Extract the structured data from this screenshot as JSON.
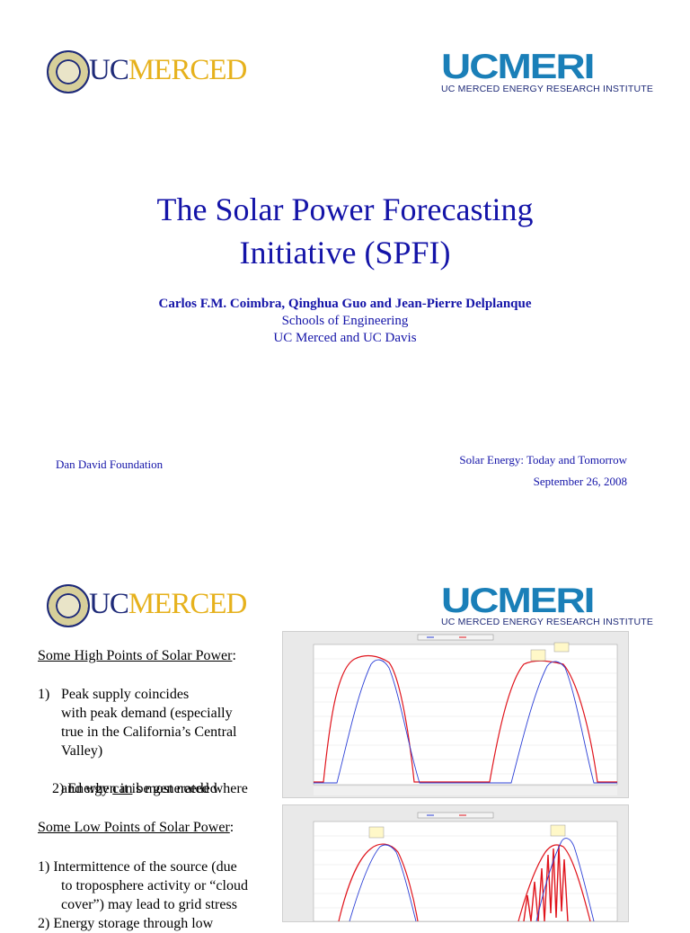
{
  "slide1": {
    "logo_left": {
      "uc": "UC",
      "merced": "MERCED"
    },
    "logo_right": {
      "name": "UCMERI",
      "subtitle": "UC MERCED ENERGY RESEARCH INSTITUTE"
    },
    "title_line1": "The Solar Power Forecasting",
    "title_line2": "Initiative (SPFI)",
    "authors": "Carlos F.M. Coimbra, Qinghua Guo and Jean-Pierre Delplanque",
    "affiliation1": "Schools of Engineering",
    "affiliation2": "UC Merced and UC Davis",
    "foundation": "Dan David Foundation",
    "event": "Solar Energy: Today and Tomorrow",
    "date": "September 26, 2008"
  },
  "slide2": {
    "logo_left": {
      "uc": "UC",
      "merced": "MERCED"
    },
    "logo_right": {
      "name": "UCMERI",
      "subtitle": "UC MERCED ENERGY RESEARCH INSTITUTE"
    },
    "high_heading": "Some High Points of Solar Power",
    "high_colon": ":",
    "high_1_num": "1)",
    "high_1_lines": [
      "Peak supply coincides",
      "with peak demand (especially",
      "true in the California’s Central",
      "Valley)"
    ],
    "high_2_pre": "2) Energy ",
    "high_2_can": "can",
    "high_2_post": " be generated where",
    "high_2_line2": "and when it is most needed",
    "low_heading": "Some Low Points of Solar Power",
    "low_colon": ":",
    "low_1_line1": "1) Intermittence of the source (due",
    "low_1_line2": "to troposphere activity or “cloud",
    "low_1_line3": "cover”) may lead to grid stress",
    "low_2_partial": "2) Energy storage through low"
  },
  "colors": {
    "title_blue": "#1414a8",
    "uc_blue": "#1e2a78",
    "merced_gold": "#e6b11c",
    "meri_blue": "#1a7fb8",
    "series_blue": "#2b3fd6",
    "series_red": "#e0141c"
  }
}
